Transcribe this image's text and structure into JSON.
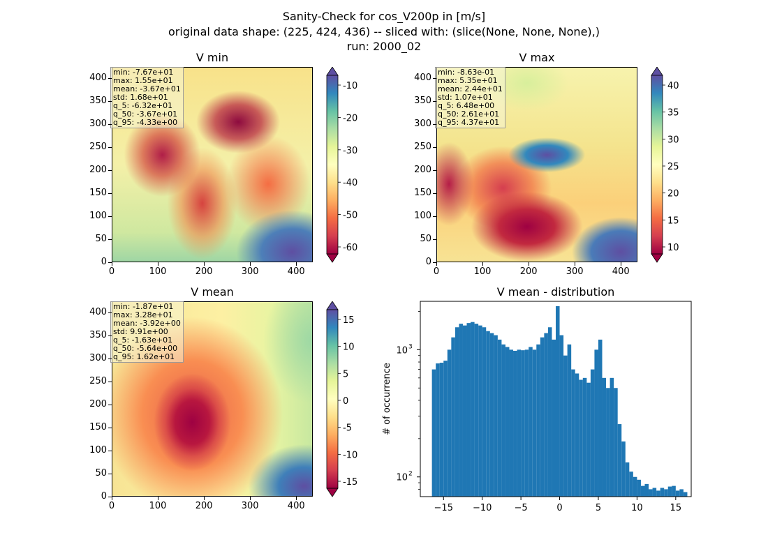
{
  "suptitle": {
    "line1": "Sanity-Check for cos_V200p in [m/s]",
    "line2": "original data shape: (225, 424, 436) -- sliced with: (slice(None, None, None),)",
    "line3": "run: 2000_02"
  },
  "panels": {
    "vmin": {
      "title": "V min",
      "stats": [
        "min: -7.67e+01",
        "max: 1.55e+01",
        "mean: -3.67e+01",
        "std: 1.68e+01",
        "q_5: -6.32e+01",
        "q_50: -3.67e+01",
        "q_95: -4.33e+00"
      ],
      "colorbar_ticks": [
        "-10",
        "-20",
        "-30",
        "-40",
        "-50",
        "-60"
      ]
    },
    "vmax": {
      "title": "V max",
      "stats": [
        "min: -8.63e-01",
        "max: 5.35e+01",
        "mean: 2.44e+01",
        "std: 1.07e+01",
        "q_5: 6.48e+00",
        "q_50: 2.61e+01",
        "q_95: 4.37e+01"
      ],
      "colorbar_ticks": [
        "40",
        "35",
        "30",
        "25",
        "20",
        "15",
        "10"
      ]
    },
    "vmean": {
      "title": "V mean",
      "stats": [
        "min: -1.87e+01",
        "max: 3.28e+01",
        "mean: -3.92e+00",
        "std: 9.91e+00",
        "q_5: -1.63e+01",
        "q_50: -5.64e+00",
        "q_95: 1.62e+01"
      ],
      "colorbar_ticks": [
        "15",
        "10",
        "5",
        "0",
        "-5",
        "-10",
        "-15"
      ]
    }
  },
  "map_axes": {
    "x_ticks": [
      "0",
      "100",
      "200",
      "300",
      "400"
    ],
    "y_ticks": [
      "400",
      "350",
      "300",
      "250",
      "200",
      "150",
      "100",
      "50",
      "0"
    ]
  },
  "colormap": [
    "#9e0142",
    "#d53e4f",
    "#f46d43",
    "#fdae61",
    "#fee08b",
    "#ffffbf",
    "#e6f598",
    "#abdda4",
    "#66c2a5",
    "#3288bd",
    "#5e4fa2"
  ],
  "chart_data": {
    "type": "bar",
    "title": "V mean - distribution",
    "xlabel": "",
    "ylabel": "# of occurrence",
    "yscale": "log",
    "xlim": [
      -18,
      17
    ],
    "ylim": [
      70,
      2400
    ],
    "xticks": [
      "-15",
      "-10",
      "-5",
      "0",
      "5",
      "10",
      "15"
    ],
    "yticks": [
      "10^3",
      "10^2"
    ],
    "bar_color": "#1f77b4",
    "x": [
      -16.25,
      -15.75,
      -15.25,
      -14.75,
      -14.25,
      -13.75,
      -13.25,
      -12.75,
      -12.25,
      -11.75,
      -11.25,
      -10.75,
      -10.25,
      -9.75,
      -9.25,
      -8.75,
      -8.25,
      -7.75,
      -7.25,
      -6.75,
      -6.25,
      -5.75,
      -5.25,
      -4.75,
      -4.25,
      -3.75,
      -3.25,
      -2.75,
      -2.25,
      -1.75,
      -1.25,
      -0.75,
      -0.25,
      0.25,
      0.75,
      1.25,
      1.75,
      2.25,
      2.75,
      3.25,
      3.75,
      4.25,
      4.75,
      5.25,
      5.75,
      6.25,
      6.75,
      7.25,
      7.75,
      8.25,
      8.75,
      9.25,
      9.75,
      10.25,
      10.75,
      11.25,
      11.75,
      12.25,
      12.75,
      13.25,
      13.75,
      14.25,
      14.75,
      15.25,
      15.75,
      16.25
    ],
    "values": [
      700,
      780,
      790,
      820,
      1000,
      1250,
      1500,
      1600,
      1550,
      1620,
      1650,
      1600,
      1550,
      1500,
      1400,
      1350,
      1300,
      1200,
      1100,
      1050,
      1000,
      980,
      1000,
      990,
      1000,
      1050,
      1000,
      1100,
      1250,
      1350,
      1500,
      1200,
      2200,
      1300,
      900,
      1100,
      700,
      650,
      580,
      600,
      550,
      700,
      1000,
      1200,
      600,
      500,
      600,
      500,
      260,
      190,
      130,
      110,
      100,
      95,
      85,
      88,
      80,
      82,
      78,
      82,
      80,
      84,
      85,
      78,
      80,
      76
    ]
  }
}
